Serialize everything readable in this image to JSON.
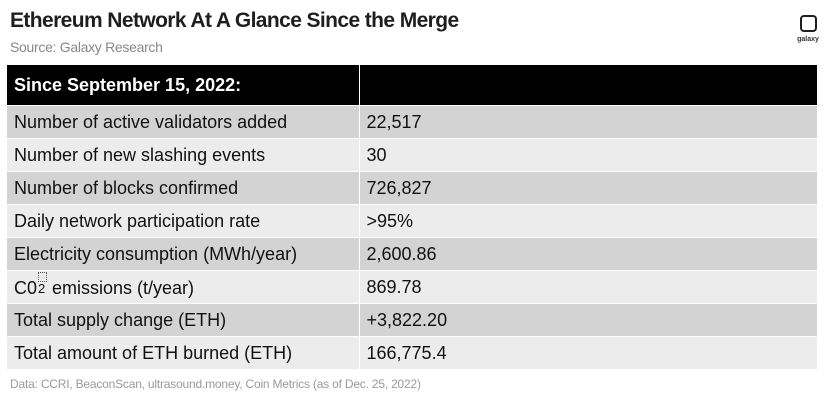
{
  "header": {
    "title": "Ethereum Network At A Glance Since the Merge",
    "source": "Source: Galaxy Research"
  },
  "logo": {
    "text": "galaxy",
    "icon": "galaxy-logo-icon"
  },
  "table": {
    "headers": [
      "Since September 15, 2022:",
      ""
    ],
    "rows": [
      {
        "label": "Number of active validators added",
        "value": "22,517"
      },
      {
        "label": "Number of new slashing events",
        "value": "30"
      },
      {
        "label": "Number of blocks confirmed",
        "value": "726,827"
      },
      {
        "label": "Daily network participation rate",
        "value": ">95%"
      },
      {
        "label": "Electricity consumption (MWh/year)",
        "value": "2,600.86"
      },
      {
        "label_prefix": "C0",
        "label_sub": "2",
        "label_suffix": " emissions (t/year)",
        "value": "869.78"
      },
      {
        "label": "Total supply change (ETH)",
        "value": "+3,822.20"
      },
      {
        "label": "Total amount of ETH burned (ETH)",
        "value": "166,775.4"
      }
    ]
  },
  "footnote": "Data: CCRI, BeaconScan, ultrasound.money, Coin Metrics (as of Dec. 25, 2022)",
  "colors": {
    "header_bg": "#000000",
    "row_dark": "#d3d3d3",
    "row_light": "#ececec"
  }
}
